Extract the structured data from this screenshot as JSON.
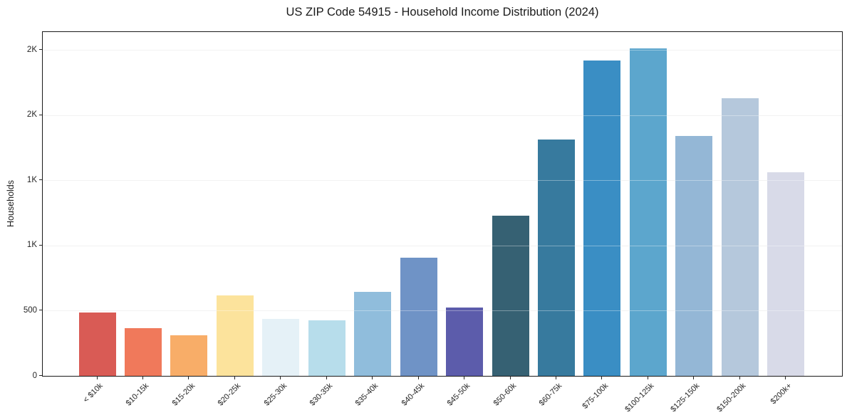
{
  "chart_data": {
    "type": "bar",
    "title": "US ZIP Code 54915 - Household Income Distribution (2024)",
    "xlabel": "",
    "ylabel": "Households",
    "ylim": [
      0,
      2638
    ],
    "grid": "horizontal-light",
    "legend": "none",
    "categories": [
      "< $10k",
      "$10-15k",
      "$15-20k",
      "$20-25k",
      "$25-30k",
      "$30-35k",
      "$35-40k",
      "$40-45k",
      "$45-50k",
      "$50-60k",
      "$60-75k",
      "$75-100k",
      "$100-125k",
      "$125-150k",
      "$150-200k",
      "$200k+"
    ],
    "values": [
      487,
      366,
      312,
      618,
      438,
      425,
      643,
      908,
      524,
      1231,
      1815,
      2418,
      2512,
      1843,
      2131,
      1564
    ],
    "bar_colors": [
      "#d95b55",
      "#f0795b",
      "#f8ad68",
      "#fce39c",
      "#e5f1f7",
      "#b7ddeb",
      "#90bddc",
      "#6f93c6",
      "#5c5cab",
      "#366173",
      "#377a9e",
      "#3a8ec4",
      "#5ca6cd",
      "#94b7d6",
      "#b5c8dc",
      "#d8dae8"
    ],
    "yticks": [
      {
        "value": 0,
        "label": "0"
      },
      {
        "value": 500,
        "label": "500"
      },
      {
        "value": 1000,
        "label": "1K"
      },
      {
        "value": 1500,
        "label": "1K"
      },
      {
        "value": 2000,
        "label": "2K"
      },
      {
        "value": 2500,
        "label": "2K"
      }
    ]
  }
}
